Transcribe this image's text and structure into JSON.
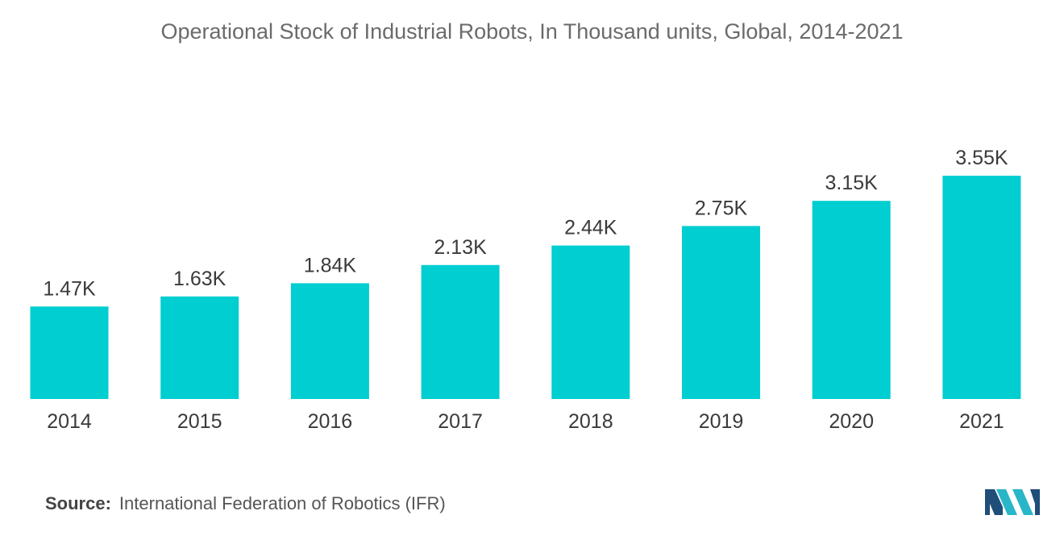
{
  "chart_data": {
    "type": "bar",
    "title": "Operational Stock of Industrial Robots, In Thousand units, Global, 2014-2021",
    "categories": [
      "2014",
      "2015",
      "2016",
      "2017",
      "2018",
      "2019",
      "2020",
      "2021"
    ],
    "values": [
      1.47,
      1.63,
      1.84,
      2.13,
      2.44,
      2.75,
      3.15,
      3.55
    ],
    "value_labels": [
      "1.47K",
      "1.63K",
      "1.84K",
      "2.13K",
      "2.44K",
      "2.75K",
      "3.15K",
      "3.55K"
    ],
    "xlabel": "",
    "ylabel": "",
    "ylim": [
      0,
      3.55
    ],
    "grid": false,
    "legend": "none",
    "bar_color": "#00CED1"
  },
  "source": {
    "label": "Source:",
    "text": "International Federation of Robotics (IFR)"
  },
  "logo": {
    "icon": "mordor-intelligence-logo-icon",
    "colors": [
      "#1f4e79",
      "#29b6c8"
    ]
  }
}
